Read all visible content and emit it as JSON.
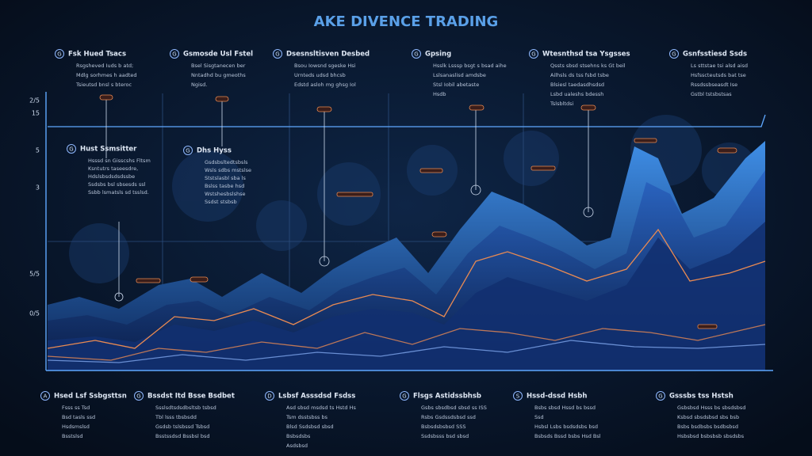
{
  "title": "AKE DIVENCE TRADING",
  "top_notes": [
    {
      "icon": "G",
      "heading": "Fsk Hued Tsacs",
      "lines": [
        "Rsgsheved Iuds b atd;",
        "Mdlg sorhmes h aadted",
        "Tsieutsd bnsl s bteroc"
      ]
    },
    {
      "icon": "G",
      "heading": "Gsmosde Usl Fstel",
      "lines": [
        "Bsel Sisgtanecen ber",
        "Nntadhd bu gmeoths",
        "Ngisd."
      ]
    },
    {
      "icon": "G",
      "heading": "Dsesnsltisven Desbed",
      "lines": [
        "Bsou Iowsnd sgeske Hsi",
        "Urnteds udsd bhcsb",
        "Edstd asloh mg ghsg Iol"
      ]
    },
    {
      "icon": "G",
      "heading": "Gpsing",
      "lines": [
        "Hsslk Lsssp bsgt s bsad aihe",
        "Lslsanaslisd amdsbe",
        "Stsl Iobil abetaste",
        "Hsdb"
      ]
    },
    {
      "icon": "G",
      "heading": "Wtesnthsd tsa Ysgsses",
      "lines": [
        "Qssts sbsd stsehns ks Gt beil",
        "Ailhsls ds tss fsbd tsbe",
        "Blsiesl taedasdhsdsd",
        "Lsbd ualeshs bdessh",
        "Tslsbltdsi"
      ]
    },
    {
      "icon": "G",
      "heading": "Gsnfsstiesd Ssds",
      "lines": [
        "Ls sttstae tsi alsd aisd",
        "Hsfsscteutsds bat tse",
        "Rssdssbseasdt Ise",
        "Gstbl tstsbstsas"
      ]
    }
  ],
  "mid_notes": [
    {
      "icon": "G",
      "heading": "Hust Ssmsitter",
      "lines": [
        "Hsssd sn Gisscshs Fltsm",
        "Ksntutrs taseesdre,",
        "Hdslsbsdsdsdssbe",
        "Ssdsbs bsl sbsesds ssl",
        "Ssbb lsmatsls sd tsslsd."
      ]
    },
    {
      "icon": "G",
      "heading": "Dhs Hyss",
      "lines": [
        "Gsdsbsltedtsbsls",
        "Wsls sdbs mstslse",
        "Ststslasbl sba ls",
        "Bslss tasbe hsd",
        "Wstshesbslshse",
        "Ssdst stsbsb"
      ]
    }
  ],
  "axis_labels": [
    "2/5",
    "15",
    "5",
    "3",
    "5/5",
    "0/5"
  ],
  "bottom_notes": [
    {
      "icon": "A",
      "heading": "Hsed Lsf Ssbgsttsn",
      "lines": [
        "Fsss ss Tsd",
        "Bsd tasls ssd",
        "Hsdsmslsd",
        "Bsstslsd"
      ]
    },
    {
      "icon": "G",
      "heading": "Bssdst Itd Bsse Bsdbet",
      "lines": [
        "Ssslsdtsdsdbsltsb tsbsd",
        "Tbl lsss tbsbsdd",
        "Gsdsb tslsbssd Tsbsd",
        "Bsstssdsd Bssbsl bsd"
      ]
    },
    {
      "icon": "D",
      "heading": "Lsbsf Asssdsd Fsdss",
      "lines": [
        "Asd sbsd msdsd ts Hstd Hs",
        "Tsm dsstsbss bs",
        "Blsd Ssdsbsd sbsd",
        "Bsbsdsbs",
        "Asdsbsd"
      ]
    },
    {
      "icon": "G",
      "heading": "Flsgs Astidssbhsb",
      "lines": [
        "Gsbs sbsdbsd sbsd ss ISS",
        "Rsbs Gsdssdsbsd ssd",
        "Bsbsdsbsbsd SSS",
        "Ssdsbsss bsd sbsd"
      ]
    },
    {
      "icon": "S",
      "heading": "Hssd-dssd Hsbh",
      "lines": [
        "Bsbs sbsd Hssd bs bssd",
        "Ssd",
        "Hsbsl Lsbs bsdsdsbs bsd",
        "Bsbsds Bssd bsbs Hsd Bsl"
      ]
    },
    {
      "icon": "G",
      "heading": "Gsssbs tss Hstsh",
      "lines": [
        "Gsbsbsd Hsss bs sbsdsbsd",
        "Ksbsd sbsdsbsd sbs bsb",
        "Bsbs bsdbsbs bsdbsbsd",
        "Hsbsbsd bsbsbsb sbsdsbs"
      ]
    }
  ]
}
